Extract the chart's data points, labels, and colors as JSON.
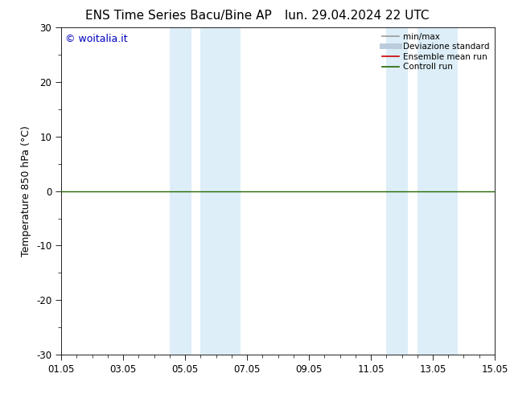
{
  "title_left": "ENS Time Series Bacu/Bine AP",
  "title_right": "lun. 29.04.2024 22 UTC",
  "ylabel": "Temperature 850 hPa (°C)",
  "ylim": [
    -30,
    30
  ],
  "yticks": [
    -30,
    -20,
    -10,
    0,
    10,
    20,
    30
  ],
  "xtick_labels": [
    "01.05",
    "03.05",
    "05.05",
    "07.05",
    "09.05",
    "11.05",
    "13.05",
    "15.05"
  ],
  "xtick_positions": [
    0,
    2,
    4,
    6,
    8,
    10,
    12,
    14
  ],
  "xlim": [
    0,
    14
  ],
  "shaded_bands": [
    {
      "x_start": 3.5,
      "x_end": 4.2
    },
    {
      "x_start": 4.5,
      "x_end": 5.8
    },
    {
      "x_start": 10.5,
      "x_end": 11.2
    },
    {
      "x_start": 11.5,
      "x_end": 12.8
    }
  ],
  "shaded_color": "#ddeef8",
  "hline_y": 0,
  "hline_color": "#226600",
  "watermark": "© woitalia.it",
  "watermark_color": "#0000bb",
  "legend_items": [
    {
      "label": "min/max",
      "color": "#999999",
      "lw": 1.2,
      "style": "solid"
    },
    {
      "label": "Deviazione standard",
      "color": "#bbccdd",
      "lw": 5,
      "style": "solid"
    },
    {
      "label": "Ensemble mean run",
      "color": "#cc0000",
      "lw": 1.2,
      "style": "solid"
    },
    {
      "label": "Controll run",
      "color": "#226600",
      "lw": 1.2,
      "style": "solid"
    }
  ],
  "background_color": "#ffffff",
  "spine_color": "#000000",
  "title_fontsize": 11,
  "axis_label_fontsize": 9,
  "tick_fontsize": 8.5,
  "legend_fontsize": 7.5
}
